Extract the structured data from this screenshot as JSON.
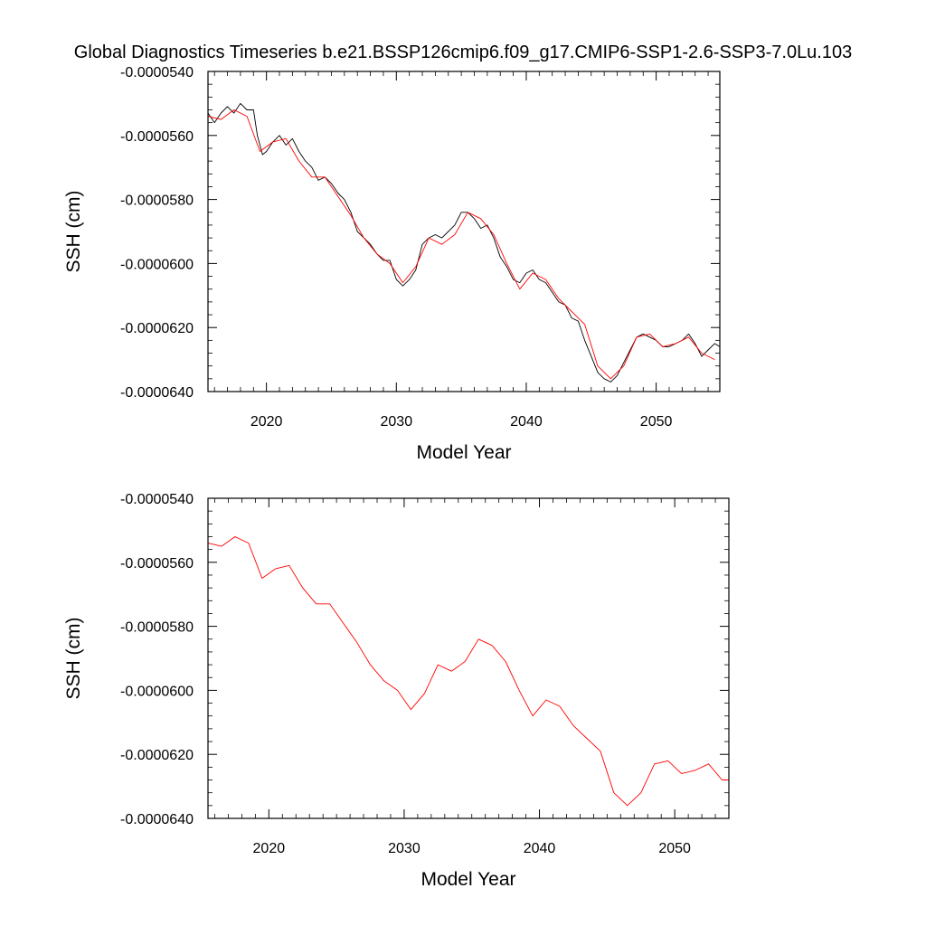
{
  "title": "Global Diagnostics Timeseries b.e21.BSSP126cmip6.f09_g17.CMIP6-SSP1-2.6-SSP3-7.0Lu.103",
  "colors": {
    "monthly_line": "#000000",
    "annual_line": "#ff0000",
    "axes": "#000000",
    "background": "#ffffff"
  },
  "chart_data": [
    {
      "type": "line",
      "xlabel": "Model Year",
      "ylabel": "SSH (cm)",
      "xlim": [
        2015.5,
        2054.9
      ],
      "ylim": [
        -6.4e-05,
        -5.4e-05
      ],
      "xticks": [
        2020,
        2030,
        2040,
        2050
      ],
      "xtick_labels": [
        "2020",
        "2030",
        "2040",
        "2050"
      ],
      "yticks": [
        -5.4e-05,
        -5.6e-05,
        -5.8e-05,
        -6e-05,
        -6.2e-05,
        -6.4e-05
      ],
      "ytick_labels": [
        "-0.0000540",
        "-0.0000560",
        "-0.0000580",
        "-0.0000600",
        "-0.0000620",
        "-0.0000640"
      ],
      "series": [
        {
          "name": "monthly",
          "color": "#000000",
          "x": [
            2015.5,
            2016.0,
            2016.5,
            2017.0,
            2017.5,
            2018.0,
            2018.5,
            2019.0,
            2019.3,
            2019.7,
            2020.0,
            2020.5,
            2021.0,
            2021.5,
            2022.0,
            2022.5,
            2023.0,
            2023.5,
            2024.0,
            2024.5,
            2025.0,
            2025.5,
            2026.0,
            2026.5,
            2027.0,
            2027.5,
            2028.0,
            2028.5,
            2029.0,
            2029.5,
            2030.0,
            2030.5,
            2031.0,
            2031.5,
            2032.0,
            2032.5,
            2033.0,
            2033.5,
            2034.0,
            2034.5,
            2035.0,
            2035.5,
            2036.0,
            2036.5,
            2037.0,
            2037.5,
            2038.0,
            2038.5,
            2039.0,
            2039.5,
            2040.0,
            2040.5,
            2041.0,
            2041.5,
            2042.0,
            2042.5,
            2043.0,
            2043.5,
            2044.0,
            2044.5,
            2045.0,
            2045.5,
            2046.0,
            2046.5,
            2047.0,
            2047.5,
            2048.0,
            2048.5,
            2049.0,
            2049.5,
            2050.0,
            2050.5,
            2051.0,
            2051.5,
            2052.0,
            2052.5,
            2053.0,
            2053.5,
            2054.0,
            2054.5,
            2054.9
          ],
          "values": [
            -5.53e-05,
            -5.56e-05,
            -5.53e-05,
            -5.51e-05,
            -5.53e-05,
            -5.5e-05,
            -5.52e-05,
            -5.52e-05,
            -5.6e-05,
            -5.66e-05,
            -5.65e-05,
            -5.62e-05,
            -5.6e-05,
            -5.63e-05,
            -5.61e-05,
            -5.65e-05,
            -5.68e-05,
            -5.7e-05,
            -5.74e-05,
            -5.73e-05,
            -5.75e-05,
            -5.78e-05,
            -5.8e-05,
            -5.84e-05,
            -5.9e-05,
            -5.92e-05,
            -5.94e-05,
            -5.97e-05,
            -5.99e-05,
            -5.99e-05,
            -6.05e-05,
            -6.07e-05,
            -6.05e-05,
            -6.02e-05,
            -5.94e-05,
            -5.92e-05,
            -5.91e-05,
            -5.92e-05,
            -5.9e-05,
            -5.88e-05,
            -5.84e-05,
            -5.84e-05,
            -5.86e-05,
            -5.89e-05,
            -5.88e-05,
            -5.92e-05,
            -5.98e-05,
            -6.01e-05,
            -6.05e-05,
            -6.06e-05,
            -6.03e-05,
            -6.02e-05,
            -6.05e-05,
            -6.06e-05,
            -6.09e-05,
            -6.12e-05,
            -6.13e-05,
            -6.17e-05,
            -6.18e-05,
            -6.24e-05,
            -6.29e-05,
            -6.34e-05,
            -6.36e-05,
            -6.37e-05,
            -6.35e-05,
            -6.31e-05,
            -6.27e-05,
            -6.23e-05,
            -6.22e-05,
            -6.23e-05,
            -6.24e-05,
            -6.26e-05,
            -6.26e-05,
            -6.25e-05,
            -6.24e-05,
            -6.22e-05,
            -6.25e-05,
            -6.29e-05,
            -6.27e-05,
            -6.25e-05,
            -6.26e-05
          ]
        },
        {
          "name": "annual",
          "color": "#ff0000",
          "x": [
            2015.5,
            2016.5,
            2017.5,
            2018.5,
            2019.5,
            2020.5,
            2021.5,
            2022.5,
            2023.5,
            2024.5,
            2025.5,
            2026.5,
            2027.5,
            2028.5,
            2029.5,
            2030.5,
            2031.5,
            2032.5,
            2033.5,
            2034.5,
            2035.5,
            2036.5,
            2037.5,
            2038.5,
            2039.5,
            2040.5,
            2041.5,
            2042.5,
            2043.5,
            2044.5,
            2045.5,
            2046.5,
            2047.5,
            2048.5,
            2049.5,
            2050.5,
            2051.5,
            2052.5,
            2053.5,
            2054.5
          ],
          "values": [
            -5.54e-05,
            -5.55e-05,
            -5.52e-05,
            -5.54e-05,
            -5.65e-05,
            -5.62e-05,
            -5.61e-05,
            -5.68e-05,
            -5.73e-05,
            -5.73e-05,
            -5.79e-05,
            -5.85e-05,
            -5.92e-05,
            -5.97e-05,
            -6e-05,
            -6.06e-05,
            -6.01e-05,
            -5.92e-05,
            -5.94e-05,
            -5.91e-05,
            -5.84e-05,
            -5.86e-05,
            -5.91e-05,
            -6e-05,
            -6.08e-05,
            -6.03e-05,
            -6.05e-05,
            -6.11e-05,
            -6.15e-05,
            -6.19e-05,
            -6.32e-05,
            -6.36e-05,
            -6.32e-05,
            -6.23e-05,
            -6.22e-05,
            -6.26e-05,
            -6.25e-05,
            -6.23e-05,
            -6.28e-05,
            -6.3e-05
          ]
        }
      ]
    },
    {
      "type": "line",
      "xlabel": "Model Year",
      "ylabel": "SSH (cm)",
      "xlim": [
        2015.5,
        2054.0
      ],
      "ylim": [
        -6.4e-05,
        -5.4e-05
      ],
      "xticks": [
        2020,
        2030,
        2040,
        2050
      ],
      "xtick_labels": [
        "2020",
        "2030",
        "2040",
        "2050"
      ],
      "yticks": [
        -5.4e-05,
        -5.6e-05,
        -5.8e-05,
        -6e-05,
        -6.2e-05,
        -6.4e-05
      ],
      "ytick_labels": [
        "-0.0000540",
        "-0.0000560",
        "-0.0000580",
        "-0.0000600",
        "-0.0000620",
        "-0.0000640"
      ],
      "series": [
        {
          "name": "annual",
          "color": "#ff0000",
          "x": [
            2015.5,
            2016.5,
            2017.5,
            2018.5,
            2019.5,
            2020.5,
            2021.5,
            2022.5,
            2023.5,
            2024.5,
            2025.5,
            2026.5,
            2027.5,
            2028.5,
            2029.5,
            2030.5,
            2031.5,
            2032.5,
            2033.5,
            2034.5,
            2035.5,
            2036.5,
            2037.5,
            2038.5,
            2039.5,
            2040.5,
            2041.5,
            2042.5,
            2043.5,
            2044.5,
            2045.5,
            2046.5,
            2047.5,
            2048.5,
            2049.5,
            2050.5,
            2051.5,
            2052.5,
            2053.5,
            2054.0
          ],
          "values": [
            -5.54e-05,
            -5.55e-05,
            -5.52e-05,
            -5.54e-05,
            -5.65e-05,
            -5.62e-05,
            -5.61e-05,
            -5.68e-05,
            -5.73e-05,
            -5.73e-05,
            -5.79e-05,
            -5.85e-05,
            -5.92e-05,
            -5.97e-05,
            -6e-05,
            -6.06e-05,
            -6.01e-05,
            -5.92e-05,
            -5.94e-05,
            -5.91e-05,
            -5.84e-05,
            -5.86e-05,
            -5.91e-05,
            -6e-05,
            -6.08e-05,
            -6.03e-05,
            -6.05e-05,
            -6.11e-05,
            -6.15e-05,
            -6.19e-05,
            -6.32e-05,
            -6.36e-05,
            -6.32e-05,
            -6.23e-05,
            -6.22e-05,
            -6.26e-05,
            -6.25e-05,
            -6.23e-05,
            -6.28e-05,
            -6.28e-05
          ]
        }
      ]
    }
  ]
}
